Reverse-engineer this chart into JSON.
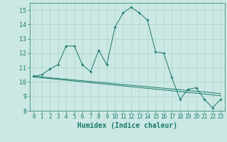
{
  "xlabel": "Humidex (Indice chaleur)",
  "bg_color": "#cce8e4",
  "grid_color": "#aad4cc",
  "line_color": "#1a7a6a",
  "xlim": [
    -0.5,
    23.5
  ],
  "ylim": [
    8,
    15.5
  ],
  "yticks": [
    8,
    9,
    10,
    11,
    12,
    13,
    14,
    15
  ],
  "xticks": [
    0,
    1,
    2,
    3,
    4,
    5,
    6,
    7,
    8,
    9,
    10,
    11,
    12,
    13,
    14,
    15,
    16,
    17,
    18,
    19,
    20,
    21,
    22,
    23
  ],
  "main_line_x": [
    0,
    1,
    2,
    3,
    4,
    5,
    6,
    7,
    8,
    9,
    10,
    11,
    12,
    13,
    14,
    15,
    16,
    17,
    18,
    19,
    20,
    21,
    22,
    23
  ],
  "main_line_y": [
    10.4,
    10.5,
    10.9,
    11.2,
    12.5,
    12.5,
    11.2,
    10.7,
    12.2,
    11.2,
    13.8,
    14.8,
    15.2,
    14.8,
    14.3,
    12.1,
    12.0,
    10.3,
    8.8,
    9.5,
    9.6,
    8.8,
    8.2,
    8.8
  ],
  "line2_x": [
    0,
    23
  ],
  "line2_y": [
    10.4,
    9.2
  ],
  "line3_x": [
    0,
    23
  ],
  "line3_y": [
    10.35,
    9.05
  ]
}
